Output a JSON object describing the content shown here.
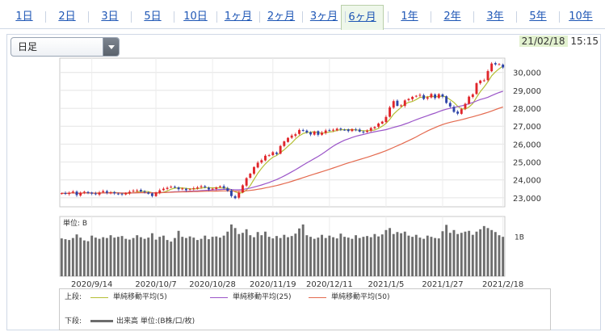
{
  "tabs": [
    {
      "label": "1日",
      "active": false
    },
    {
      "label": "2日",
      "active": false
    },
    {
      "label": "3日",
      "active": false
    },
    {
      "label": "5日",
      "active": false
    },
    {
      "label": "10日",
      "active": false
    },
    {
      "label": "1ヶ月",
      "active": false
    },
    {
      "label": "2ヶ月",
      "active": false
    },
    {
      "label": "3ヶ月",
      "active": false
    },
    {
      "label": "6ヶ月",
      "active": true
    },
    {
      "label": "1年",
      "active": false
    },
    {
      "label": "2年",
      "active": false
    },
    {
      "label": "3年",
      "active": false
    },
    {
      "label": "5年",
      "active": false
    },
    {
      "label": "10年",
      "active": false
    }
  ],
  "period_select": {
    "value": "日足"
  },
  "timestamp": {
    "date": "21/02/18",
    "time": "15:15"
  },
  "colors": {
    "up_candle": "#e0262b",
    "down_candle": "#2e44a8",
    "ma5": "#b5bf35",
    "ma25": "#9b55c8",
    "ma50": "#e46a4f",
    "volume": "#6d6d6d",
    "tab_active_bg": "#eef7ea"
  },
  "chart_data": {
    "type": "candlestick",
    "y_ticks": [
      "30,000",
      "29,000",
      "28,000",
      "27,000",
      "26,000",
      "25,000",
      "24,000",
      "23,000"
    ],
    "ylim": [
      22500,
      30800
    ],
    "x_tick_labels": [
      "2020/9/14",
      "2020/10/7",
      "2020/10/28",
      "2020/11/19",
      "2020/12/11",
      "2021/1/5",
      "2021/1/27",
      "2021/2/18"
    ],
    "close": [
      23260,
      23230,
      23280,
      23350,
      23150,
      23290,
      23340,
      23270,
      23240,
      23200,
      23300,
      23380,
      23280,
      23310,
      23250,
      23210,
      23190,
      23270,
      23340,
      23400,
      23420,
      23360,
      23320,
      23230,
      23100,
      23300,
      23420,
      23510,
      23560,
      23620,
      23600,
      23480,
      23520,
      23430,
      23500,
      23540,
      23580,
      23650,
      23590,
      23470,
      23510,
      23580,
      23650,
      23550,
      23390,
      23100,
      22980,
      23300,
      23700,
      24100,
      24350,
      24720,
      24960,
      25100,
      25350,
      25380,
      25550,
      25450,
      25900,
      26150,
      26350,
      26480,
      26550,
      26790,
      26780,
      26650,
      26540,
      26700,
      26520,
      26640,
      26760,
      26770,
      26800,
      26860,
      26820,
      26800,
      26730,
      26840,
      26800,
      26700,
      26650,
      26750,
      26900,
      26950,
      27150,
      27260,
      27520,
      28050,
      28400,
      28140,
      28160,
      28440,
      28520,
      28640,
      28700,
      28750,
      28520,
      28610,
      28800,
      28570,
      28790,
      28650,
      28300,
      28100,
      27800,
      27700,
      27950,
      28250,
      28650,
      28780,
      29400,
      29550,
      29560,
      30080,
      30500,
      30450,
      30460,
      30280
    ],
    "volume_scale_label": "1B",
    "volume_unit_label": "単位: B",
    "volume": [
      0.95,
      0.93,
      0.91,
      0.96,
      1.05,
      0.97,
      0.9,
      0.88,
      1.02,
      0.97,
      0.94,
      0.98,
      0.96,
      1.03,
      0.97,
      0.99,
      1.01,
      0.94,
      0.92,
      0.96,
      1.03,
      0.98,
      0.94,
      0.97,
      1.08,
      0.92,
      0.99,
      1.02,
      0.91,
      0.87,
      0.96,
      1.14,
      0.99,
      0.96,
      1.0,
      0.97,
      0.91,
      0.94,
      1.02,
      0.93,
      0.99,
      1.0,
      0.97,
      1.02,
      1.12,
      1.3,
      1.21,
      1.06,
      1.09,
      1.18,
      1.03,
      0.98,
      1.11,
      1.03,
      1.12,
      0.99,
      0.95,
      1.01,
      0.96,
      1.04,
      0.98,
      1.01,
      1.07,
      1.2,
      1.3,
      1.03,
      0.99,
      0.94,
      0.97,
      1.04,
      0.96,
      1.02,
      0.98,
      0.95,
      1.07,
      0.99,
      0.97,
      0.94,
      1.03,
      0.96,
      0.99,
      1.01,
      0.98,
      1.06,
      1.0,
      1.05,
      1.16,
      1.21,
      1.06,
      1.11,
      1.08,
      1.12,
      1.02,
      0.99,
      1.04,
      0.97,
      0.94,
      1.02,
      0.99,
      0.96,
      0.95,
      1.13,
      1.29,
      1.09,
      1.16,
      1.06,
      1.09,
      1.12,
      1.14,
      1.04,
      1.12,
      1.18,
      1.26,
      1.21,
      1.16,
      1.11,
      1.03,
      0.99
    ],
    "vol_max": 1.5,
    "series": [
      {
        "name": "単純移動平均(5)",
        "period": 5
      },
      {
        "name": "単純移動平均(25)",
        "period": 25
      },
      {
        "name": "単純移動平均(50)",
        "period": 50
      }
    ],
    "grid": true,
    "legend_position": "bottom"
  },
  "legend": {
    "upper_label": "上段:",
    "lower_label": "下段:",
    "items": [
      {
        "label": "単純移動平均(5)",
        "color": "#b5bf35"
      },
      {
        "label": "単純移動平均(25)",
        "color": "#9b55c8"
      },
      {
        "label": "単純移動平均(50)",
        "color": "#e46a4f"
      }
    ],
    "volume_label": "出来高 単位:(B株/口/枚)"
  }
}
